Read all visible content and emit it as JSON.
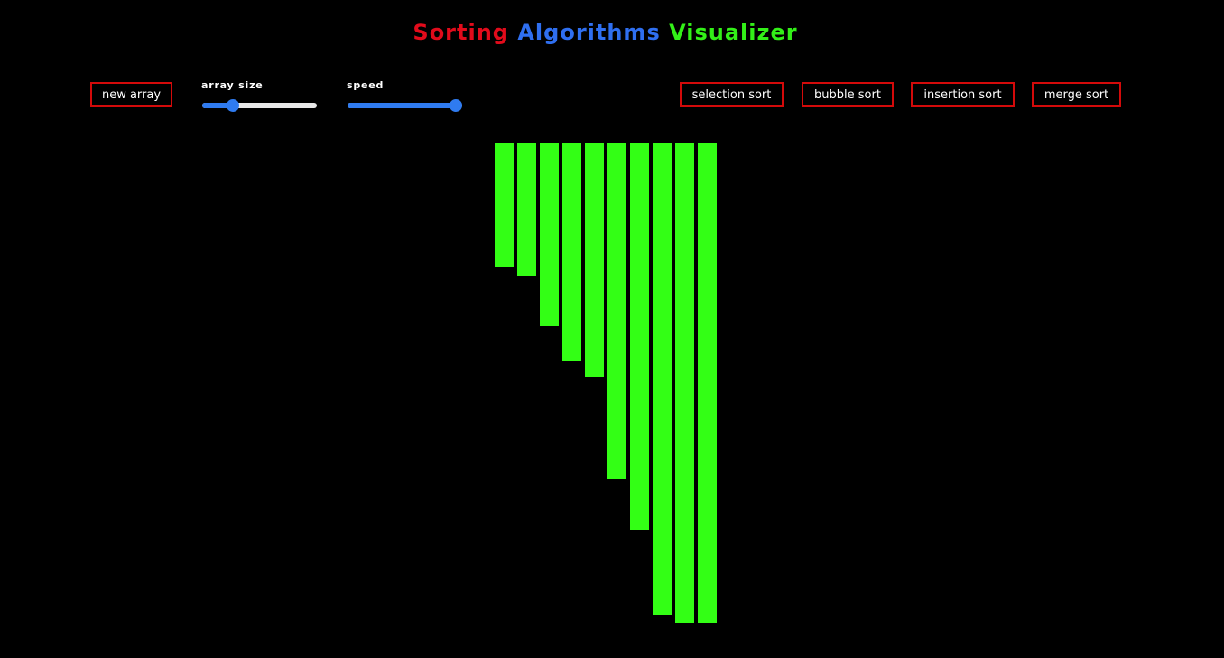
{
  "header": {
    "title_words": [
      {
        "text": "Sorting",
        "color": "#e20b1b"
      },
      {
        "text": "Algorithms",
        "color": "#2f6ff0"
      },
      {
        "text": "Visualizer",
        "color": "#33f018"
      }
    ]
  },
  "controls": {
    "new_array_label": "new array",
    "array_size": {
      "label": "array size",
      "value_fraction": 0.24
    },
    "speed": {
      "label": "speed",
      "value_fraction": 1.0
    }
  },
  "algorithms": {
    "selection_sort_label": "selection sort",
    "bubble_sort_label": "bubble sort",
    "insertion_sort_label": "insertion sort",
    "merge_sort_label": "merge sort"
  },
  "colors": {
    "background": "#000000",
    "button_border": "#d40a0a",
    "slider_accent": "#2f7bf0",
    "bar": "#33ff15"
  },
  "array": {
    "values": [
      137,
      147,
      203,
      241,
      259,
      372,
      429,
      523,
      532,
      532
    ],
    "max_value": 532
  }
}
